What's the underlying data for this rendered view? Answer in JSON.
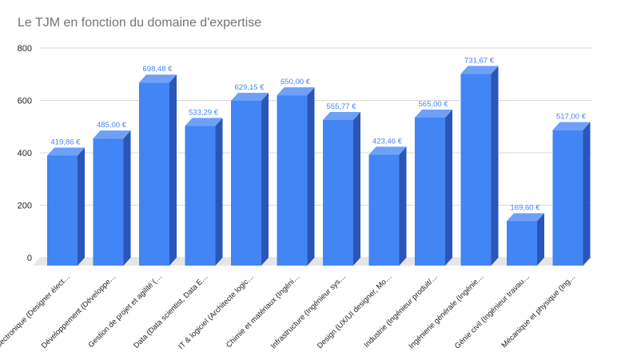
{
  "chart_data": {
    "type": "bar",
    "title": "Le TJM en fonction du domaine d'expertise",
    "xlabel": "",
    "ylabel": "",
    "ylim": [
      0,
      800
    ],
    "yticks": [
      "0",
      "200",
      "400",
      "600",
      "800"
    ],
    "grid": true,
    "legend": "none",
    "style": "3d",
    "bar_color": "#4285f4",
    "bar_side_color": "#2a56b8",
    "bar_top_color": "#6fa0f7",
    "categories": [
      "Électronique (Designer élect…",
      "Développement (Développe…",
      "Gestion de projet et agilité (…",
      "Data (Data scientist, Data E…",
      "IT & logiciel (Architecte logic…",
      "Chimie et matériaux (Ingéni…",
      "Infrastructure (Ingénieur sys…",
      "Design (UX/UI designer, Mo…",
      "Industrie (Ingénieur produit/…",
      "Ingénierie générale (Ingénie…",
      "Génie civil (Ingénieur travau…",
      "Mécanique et physique (Ing…"
    ],
    "values": [
      419.86,
      485.0,
      698.48,
      533.29,
      629.15,
      650.0,
      555.77,
      423.46,
      565.0,
      731.67,
      169.6,
      517.0
    ],
    "data_labels": [
      "419,86 €",
      "485,00 €",
      "698,48 €",
      "533,29 €",
      "629,15 €",
      "650,00 €",
      "555,77 €",
      "423,46 €",
      "565,00 €",
      "731,67 €",
      "169,60 €",
      "517,00 €"
    ]
  }
}
